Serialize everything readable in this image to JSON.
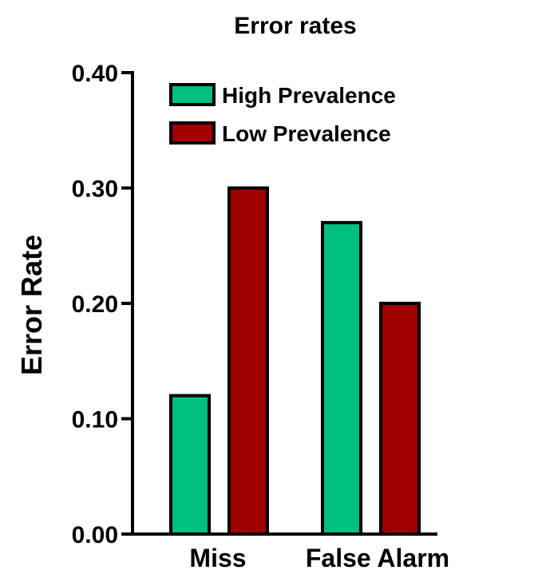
{
  "chart_data": {
    "type": "bar",
    "title": "Error rates",
    "xlabel": "",
    "ylabel": "Error Rate",
    "categories": [
      "Miss",
      "False Alarm"
    ],
    "series": [
      {
        "name": "High Prevalence",
        "values": [
          0.12,
          0.27
        ],
        "color": "#00c07f"
      },
      {
        "name": "Low Prevalence",
        "values": [
          0.3,
          0.2
        ],
        "color": "#a00000"
      }
    ],
    "ylim": [
      0,
      0.4
    ],
    "yticks": [
      0.0,
      0.1,
      0.2,
      0.3,
      0.4
    ],
    "ytick_labels": [
      "0.00",
      "0.10",
      "0.20",
      "0.30",
      "0.40"
    ],
    "grid": false,
    "legend_position": "top-left"
  }
}
